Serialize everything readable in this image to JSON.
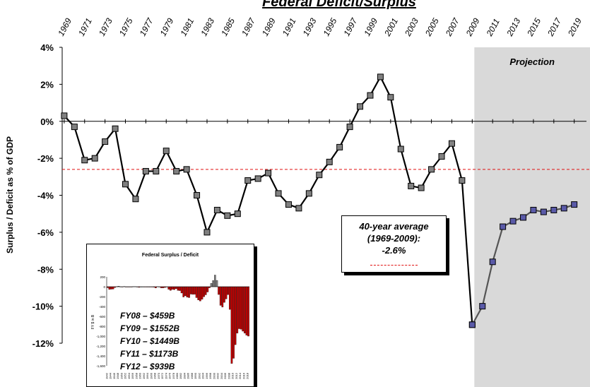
{
  "chart_data": [
    {
      "type": "line",
      "title": "Federal Deficit/Surplus",
      "ylabel": "Surplus / Deficit as % of GDP",
      "xlabel": "",
      "ylim": [
        -12,
        4
      ],
      "y_tick_labels": [
        "4%",
        "2%",
        "0%",
        "-2%",
        "-4%",
        "-6%",
        "-8%",
        "-10%",
        "-12%"
      ],
      "x_tick_labels": [
        "1969",
        "1971",
        "1973",
        "1975",
        "1977",
        "1979",
        "1981",
        "1983",
        "1985",
        "1987",
        "1989",
        "1991",
        "1993",
        "1995",
        "1997",
        "1999",
        "2001",
        "2003",
        "2005",
        "2007",
        "2009",
        "2011",
        "2013",
        "2015",
        "2017",
        "2019"
      ],
      "series": [
        {
          "color": "#000000",
          "marker_color": "#808080",
          "points": [
            [
              1969,
              0.3
            ],
            [
              1970,
              -0.3
            ],
            [
              1971,
              -2.1
            ],
            [
              1972,
              -2.0
            ],
            [
              1973,
              -1.1
            ],
            [
              1974,
              -0.4
            ],
            [
              1975,
              -3.4
            ],
            [
              1976,
              -4.2
            ],
            [
              1977,
              -2.7
            ],
            [
              1978,
              -2.7
            ],
            [
              1979,
              -1.6
            ],
            [
              1980,
              -2.7
            ],
            [
              1981,
              -2.6
            ],
            [
              1982,
              -4.0
            ],
            [
              1983,
              -6.0
            ],
            [
              1984,
              -4.8
            ],
            [
              1985,
              -5.1
            ],
            [
              1986,
              -5.0
            ],
            [
              1987,
              -3.2
            ],
            [
              1988,
              -3.1
            ],
            [
              1989,
              -2.8
            ],
            [
              1990,
              -3.9
            ],
            [
              1991,
              -4.5
            ],
            [
              1992,
              -4.7
            ],
            [
              1993,
              -3.9
            ],
            [
              1994,
              -2.9
            ],
            [
              1995,
              -2.2
            ],
            [
              1996,
              -1.4
            ],
            [
              1997,
              -0.3
            ],
            [
              1998,
              0.8
            ],
            [
              1999,
              1.4
            ],
            [
              2000,
              2.4
            ],
            [
              2001,
              1.3
            ],
            [
              2002,
              -1.5
            ],
            [
              2003,
              -3.5
            ],
            [
              2004,
              -3.6
            ],
            [
              2005,
              -2.6
            ],
            [
              2006,
              -1.9
            ],
            [
              2007,
              -1.2
            ],
            [
              2008,
              -3.2
            ],
            [
              2009,
              -11.0
            ]
          ]
        },
        {
          "color": "#555555",
          "marker_color": "#5a5aa8",
          "points": [
            [
              2009,
              -11.0
            ],
            [
              2010,
              -10.0
            ],
            [
              2011,
              -7.6
            ],
            [
              2012,
              -5.7
            ],
            [
              2013,
              -5.4
            ],
            [
              2014,
              -5.2
            ],
            [
              2015,
              -4.8
            ],
            [
              2016,
              -4.9
            ],
            [
              2017,
              -4.8
            ],
            [
              2018,
              -4.7
            ],
            [
              2019,
              -4.5
            ]
          ]
        }
      ],
      "average_line": {
        "value": -2.6,
        "color": "#e01010"
      },
      "projection_region": {
        "from": 2009,
        "to": 2019,
        "label": "Projection",
        "color": "#d9d9d9"
      },
      "legend": {
        "lines": [
          "40-year average",
          "(1969-2009):",
          "-2.6%"
        ]
      }
    },
    {
      "type": "bar",
      "title": "Federal Surplus / Deficit",
      "ylabel": "FY $ in B",
      "ylim": [
        -1600,
        200
      ],
      "y_tick_labels": [
        "200",
        "0",
        "-200",
        "-400",
        "-600",
        "-800",
        "-1,000",
        "-1,200",
        "-1,400",
        "-1,600"
      ],
      "x_tick_labels": [
        "1942",
        "1944",
        "1946",
        "1948",
        "1950",
        "1952",
        "1954",
        "1956",
        "1958",
        "1960",
        "1962",
        "1964",
        "1966",
        "1968",
        "1970",
        "1972",
        "1974",
        "1976",
        "1978",
        "1980",
        "1982",
        "1984",
        "1986",
        "1988",
        "1990",
        "1992",
        "1994",
        "1996",
        "1998",
        "2000",
        "2002",
        "2004",
        "2006",
        "2008",
        "2010",
        "2012",
        "2014",
        "2016",
        "2018"
      ],
      "positive_color": "#808080",
      "negative_color": "#c00000",
      "start_year": 1942,
      "values": [
        -20,
        -55,
        -50,
        -48,
        -16,
        4,
        12,
        1,
        -3,
        6,
        -2,
        -6,
        -1,
        -3,
        4,
        3,
        -3,
        -13,
        0,
        0,
        -7,
        -5,
        -6,
        -1,
        -4,
        -9,
        -25,
        3,
        -2,
        -23,
        -23,
        -15,
        -6,
        -53,
        -74,
        -54,
        -59,
        -41,
        -74,
        -79,
        -128,
        -208,
        -185,
        -212,
        -221,
        -150,
        -155,
        -153,
        -221,
        -269,
        -290,
        -255,
        -203,
        -164,
        -107,
        -22,
        69,
        126,
        236,
        128,
        -158,
        -378,
        -413,
        -318,
        -248,
        -161,
        -459,
        -1552,
        -1449,
        -1173,
        -939,
        -850,
        -860,
        -900,
        -940,
        -980,
        -1000
      ],
      "annotations": [
        "FY08 – $459B",
        "FY09 – $1552B",
        "FY10 – $1449B",
        "FY11 – $1173B",
        "FY12 – $939B"
      ]
    }
  ]
}
